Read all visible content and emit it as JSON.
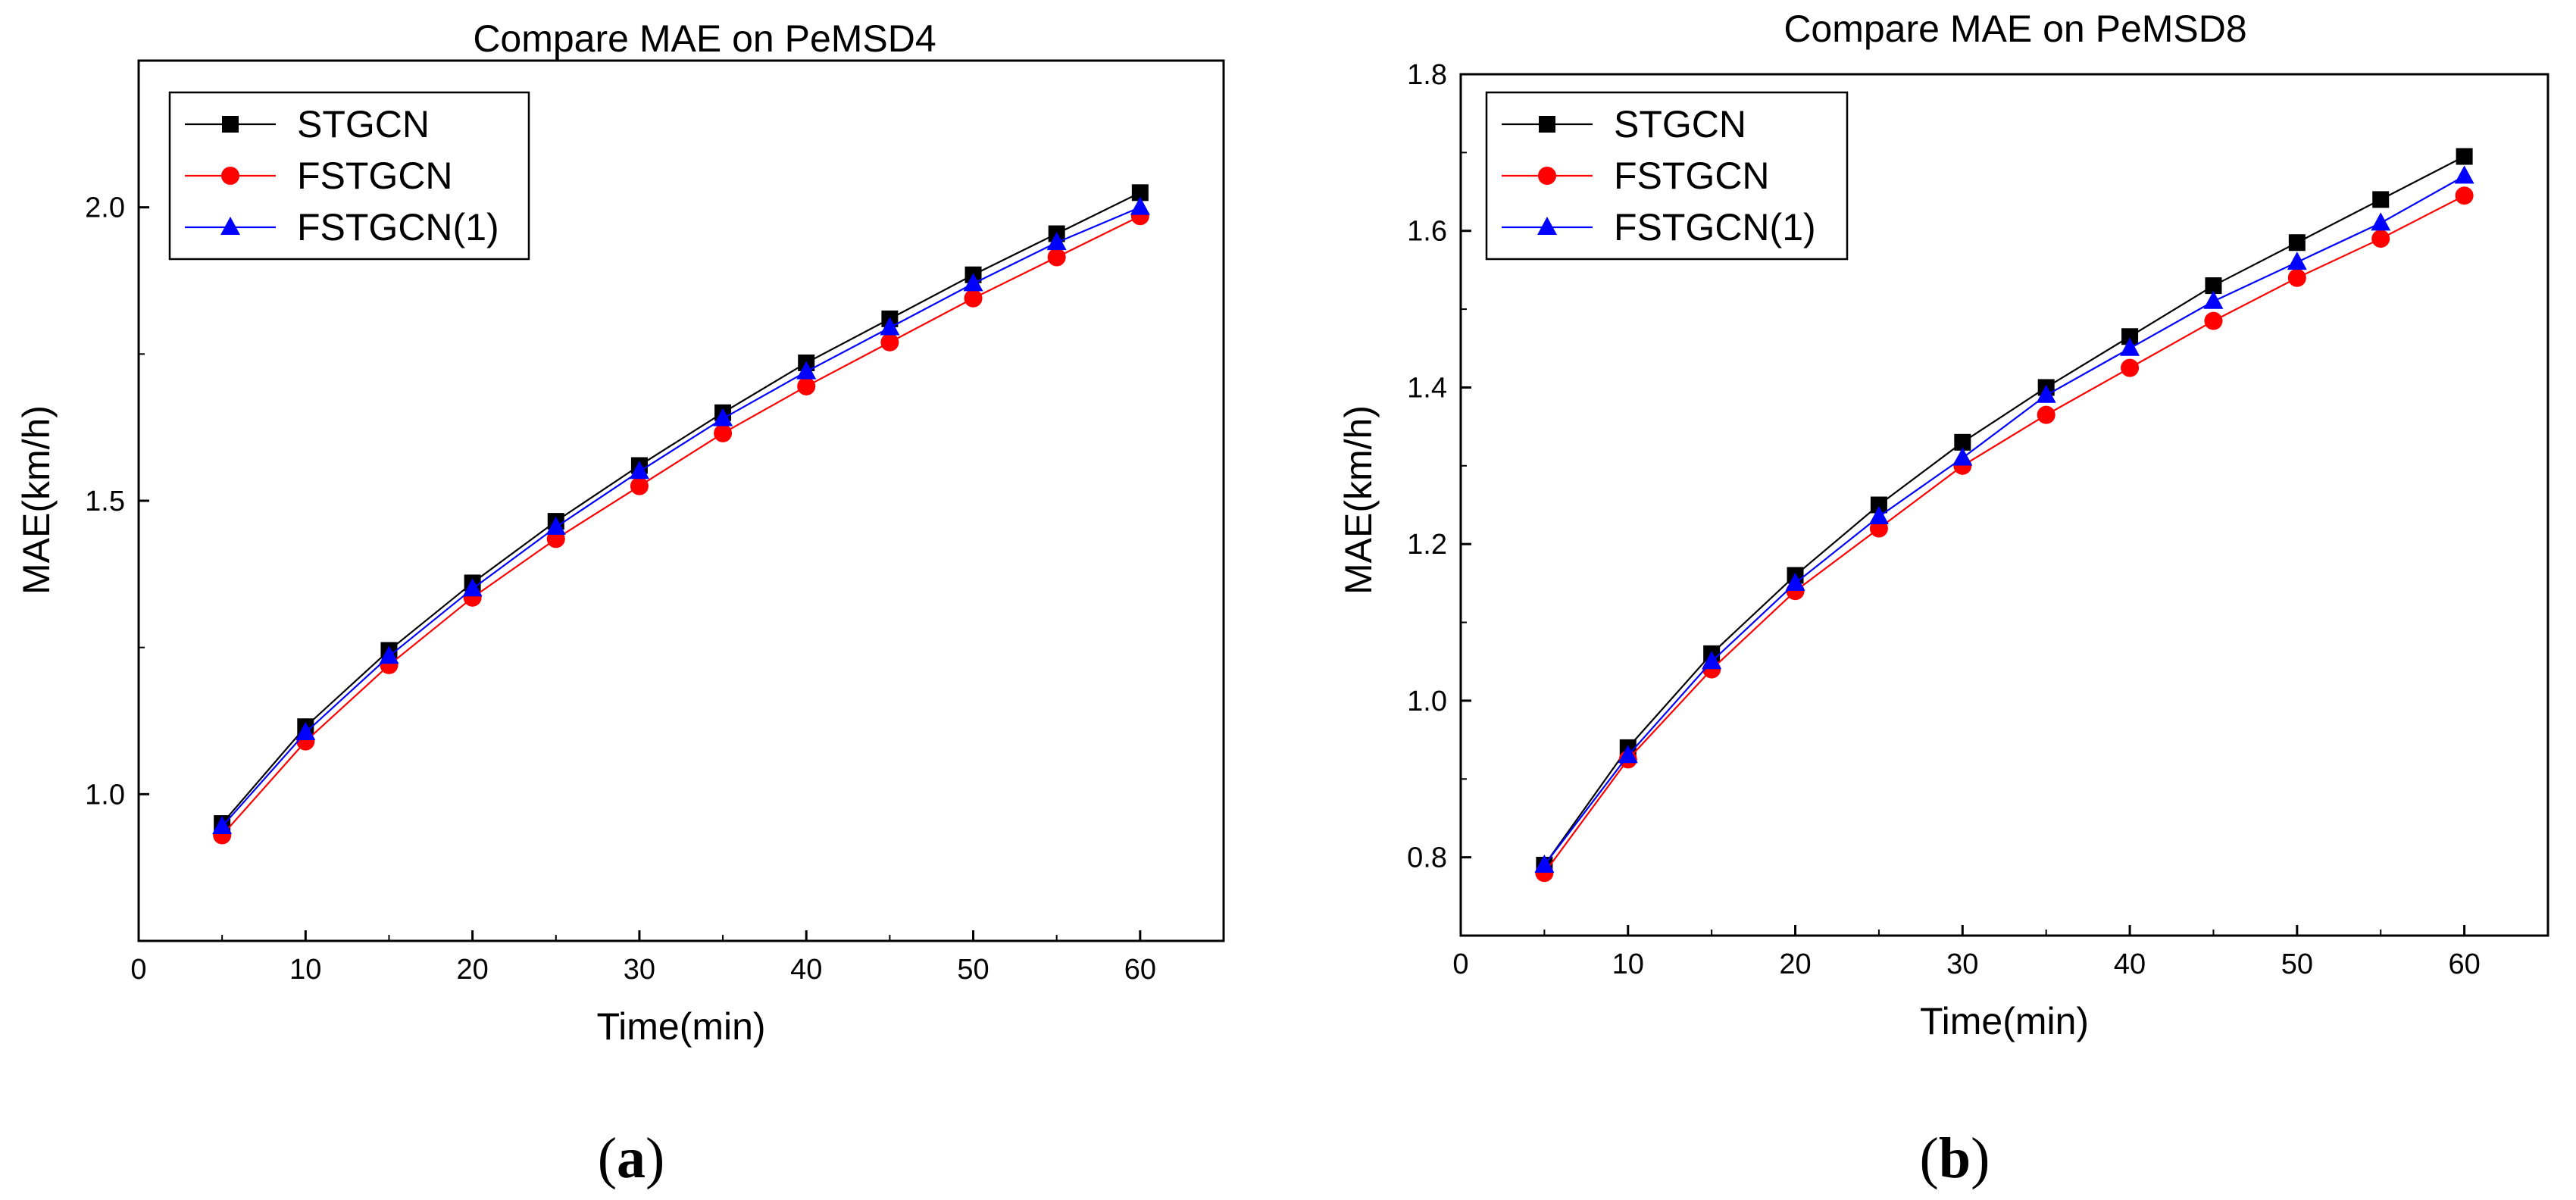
{
  "chart_data": [
    {
      "type": "line",
      "title": "Compare MAE on PeMSD4",
      "xlabel": "Time(min)",
      "ylabel": "MAE(km/h)",
      "xlim": [
        0,
        65
      ],
      "ylim": [
        0.75,
        2.25
      ],
      "xticks": [
        0,
        10,
        20,
        30,
        40,
        50,
        60
      ],
      "yticks": [
        1.0,
        1.5,
        2.0
      ],
      "ytick_labels": [
        "1.0",
        "1.5",
        "2.0"
      ],
      "legend_position": "top-left",
      "x": [
        5,
        10,
        15,
        20,
        25,
        30,
        35,
        40,
        45,
        50,
        55,
        60
      ],
      "series": [
        {
          "name": "STGCN",
          "color": "#000000",
          "marker": "square",
          "values": [
            0.95,
            1.115,
            1.245,
            1.36,
            1.465,
            1.56,
            1.65,
            1.735,
            1.81,
            1.885,
            1.955,
            2.025
          ]
        },
        {
          "name": "FSTGCN",
          "color": "#ff0000",
          "marker": "circle",
          "values": [
            0.93,
            1.09,
            1.22,
            1.335,
            1.435,
            1.525,
            1.615,
            1.695,
            1.77,
            1.845,
            1.915,
            1.985
          ]
        },
        {
          "name": "FSTGCN(1)",
          "color": "#0000ff",
          "marker": "triangle",
          "values": [
            0.945,
            1.105,
            1.235,
            1.35,
            1.455,
            1.55,
            1.64,
            1.72,
            1.795,
            1.87,
            1.94,
            2.0
          ]
        }
      ],
      "caption": "a"
    },
    {
      "type": "line",
      "title": "Compare MAE on PeMSD8",
      "xlabel": "Time(min)",
      "ylabel": "MAE(km/h)",
      "xlim": [
        0,
        65
      ],
      "ylim": [
        0.7,
        1.8
      ],
      "xticks": [
        0,
        10,
        20,
        30,
        40,
        50,
        60
      ],
      "yticks": [
        0.8,
        1.0,
        1.2,
        1.4,
        1.6,
        1.8
      ],
      "ytick_labels": [
        "0.8",
        "1.0",
        "1.2",
        "1.4",
        "1.6",
        "1.8"
      ],
      "legend_position": "top-left",
      "x": [
        5,
        10,
        15,
        20,
        25,
        30,
        35,
        40,
        45,
        50,
        55,
        60
      ],
      "series": [
        {
          "name": "STGCN",
          "color": "#000000",
          "marker": "square",
          "values": [
            0.79,
            0.94,
            1.06,
            1.16,
            1.25,
            1.33,
            1.4,
            1.465,
            1.53,
            1.585,
            1.64,
            1.695
          ]
        },
        {
          "name": "FSTGCN",
          "color": "#ff0000",
          "marker": "circle",
          "values": [
            0.78,
            0.925,
            1.04,
            1.14,
            1.22,
            1.3,
            1.365,
            1.425,
            1.485,
            1.54,
            1.59,
            1.645
          ]
        },
        {
          "name": "FSTGCN(1)",
          "color": "#0000ff",
          "marker": "triangle",
          "values": [
            0.79,
            0.93,
            1.05,
            1.15,
            1.235,
            1.31,
            1.39,
            1.45,
            1.51,
            1.56,
            1.61,
            1.67
          ]
        }
      ],
      "caption": "b"
    }
  ]
}
